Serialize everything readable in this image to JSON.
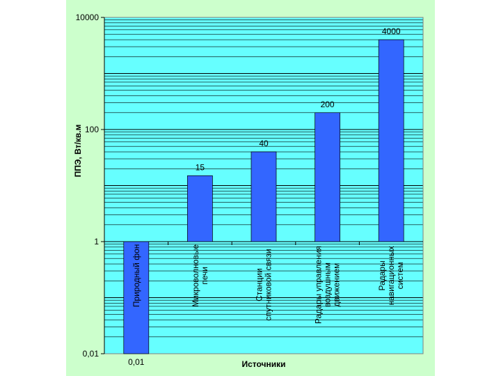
{
  "chart_data": {
    "type": "bar",
    "title": "",
    "xlabel": "Источники",
    "ylabel": "ППЭ, Вт/кв.м",
    "yscale": "log",
    "ylim": [
      0.01,
      10000
    ],
    "y_ticks": [
      "10000",
      "100",
      "1",
      "0,01"
    ],
    "baseline": 1,
    "grid": true,
    "colors": {
      "plot_bg": "#66ffff",
      "bar": "#3366ff",
      "panel_bg": "#ccffcc",
      "grid": "#000000"
    },
    "categories": [
      [
        "Природный фон"
      ],
      [
        "Микроволновые",
        "печи"
      ],
      [
        "Станции",
        "спутниковой связи"
      ],
      [
        "Радары управления",
        "воздушным",
        "движением"
      ],
      [
        "Радары",
        "навигационных",
        "систем"
      ]
    ],
    "values": [
      0.01,
      15,
      40,
      200,
      4000
    ],
    "data_labels": [
      "0,01",
      "15",
      "40",
      "200",
      "4000"
    ]
  }
}
